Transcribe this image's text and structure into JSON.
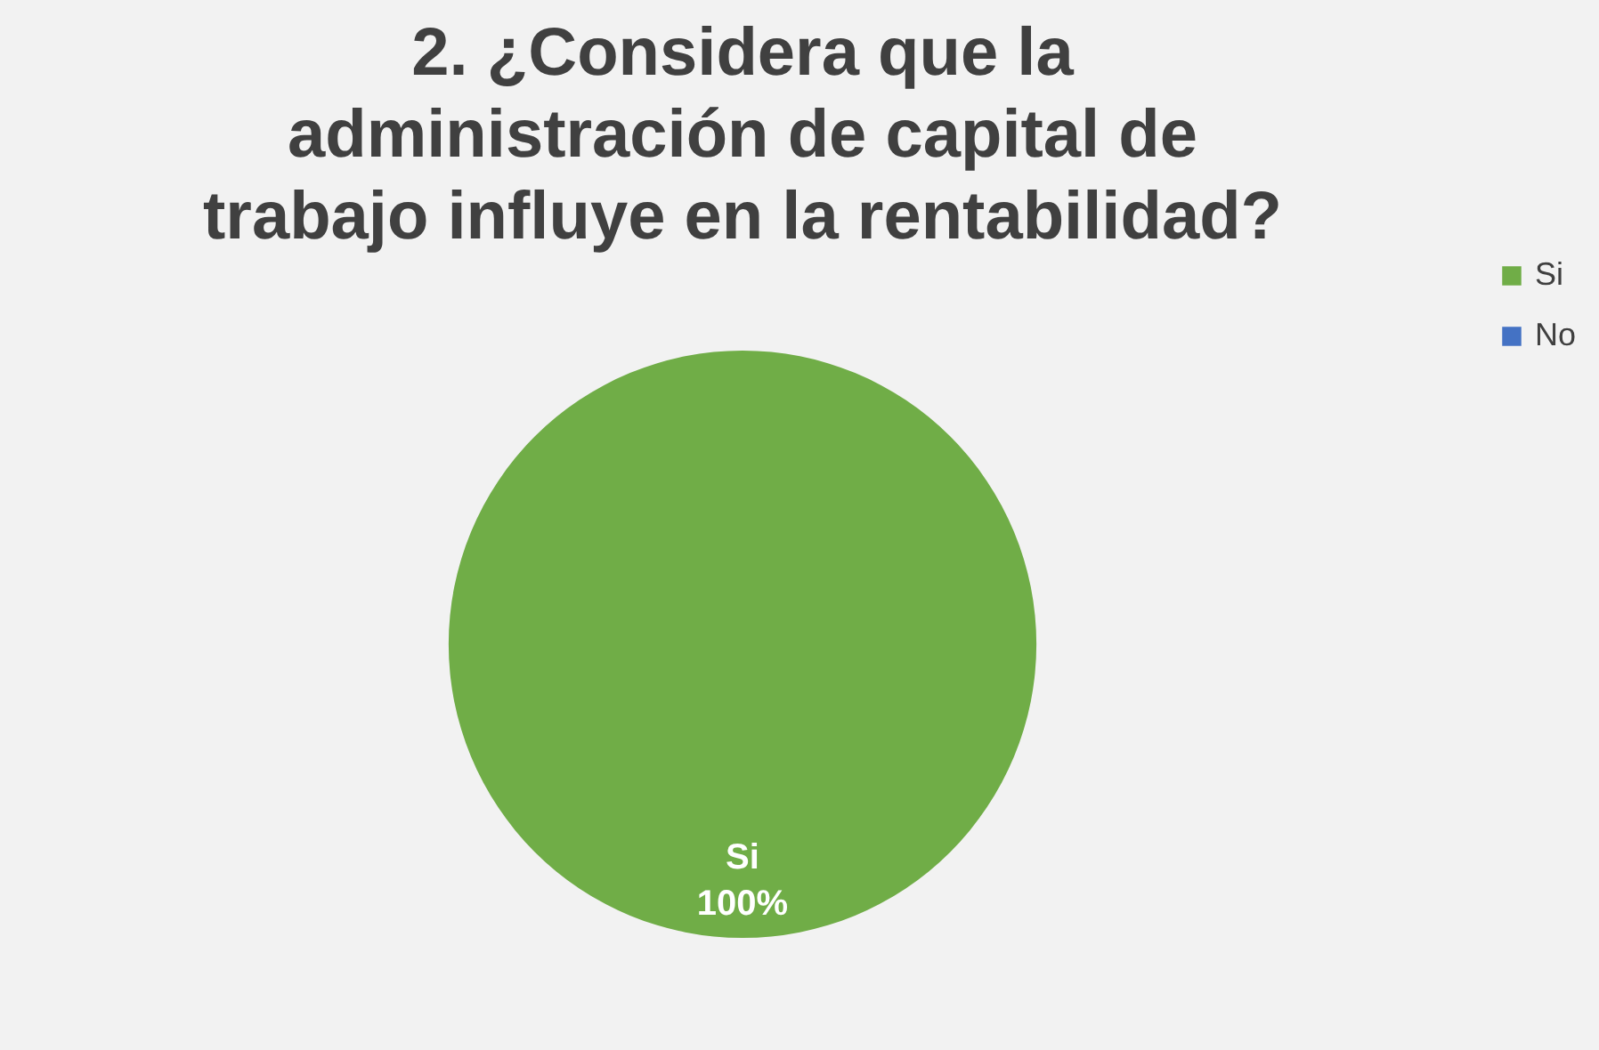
{
  "chart_data": {
    "type": "pie",
    "title": "2. ¿Considera que la\nadministración de capital de\ntrabajo influye en la rentabilidad?",
    "categories": [
      "Si",
      "No"
    ],
    "values": [
      100,
      0
    ],
    "colors": [
      "#70ad47",
      "#4472c4"
    ],
    "value_labels": [
      "100%",
      null
    ],
    "legend": "right"
  }
}
